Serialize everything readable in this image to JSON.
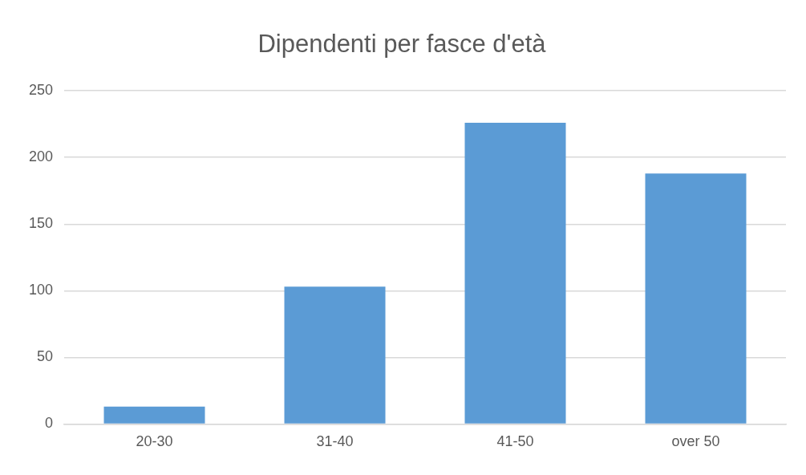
{
  "chart_data": {
    "type": "bar",
    "title": "Dipendenti per fasce d'età",
    "categories": [
      "20-30",
      "31-40",
      "41-50",
      "over 50"
    ],
    "values": [
      13,
      103,
      226,
      188
    ],
    "color": "#5b9bd5",
    "ylim": [
      0,
      250
    ],
    "yticks": [
      0,
      50,
      100,
      150,
      200,
      250
    ],
    "grid": "y"
  }
}
